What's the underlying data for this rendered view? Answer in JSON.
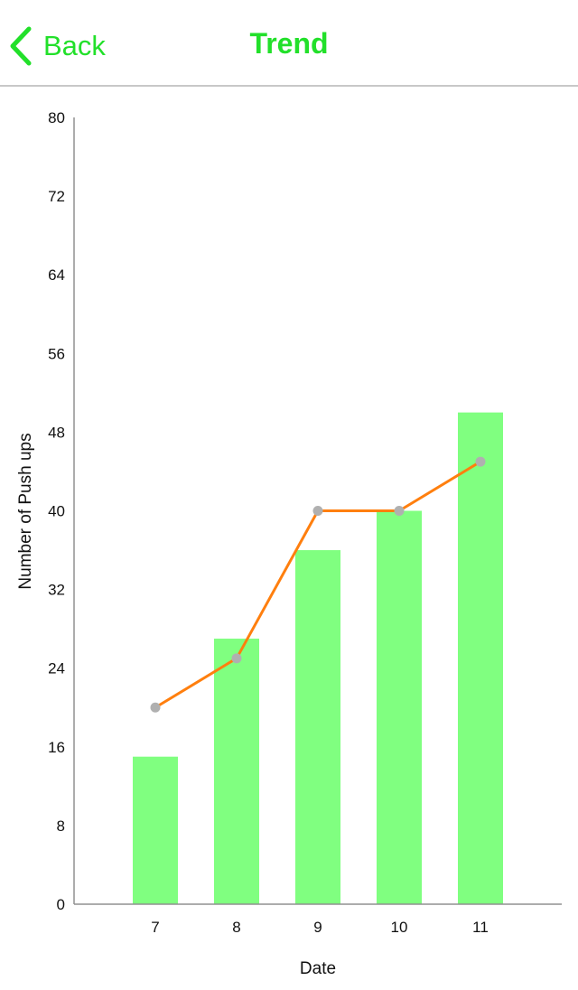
{
  "header": {
    "back_label": "Back",
    "title": "Trend"
  },
  "colors": {
    "accent": "#22e02a",
    "bar": "#80ff80",
    "line": "#ff7f0e",
    "point": "#b0b0b0",
    "axis": "#909090"
  },
  "chart_data": {
    "type": "bar",
    "categories": [
      "7",
      "8",
      "9",
      "10",
      "11"
    ],
    "series": [
      {
        "type": "bar",
        "values": [
          15,
          27,
          36,
          40,
          50
        ]
      },
      {
        "type": "line",
        "values": [
          20,
          25,
          40,
          40,
          45
        ]
      }
    ],
    "xlabel": "Date",
    "ylabel": "Number of Push ups",
    "ylim": [
      0,
      80
    ],
    "yticks": [
      0,
      8,
      16,
      24,
      32,
      40,
      48,
      56,
      64,
      72,
      80
    ],
    "grid": false,
    "legend": "none"
  }
}
